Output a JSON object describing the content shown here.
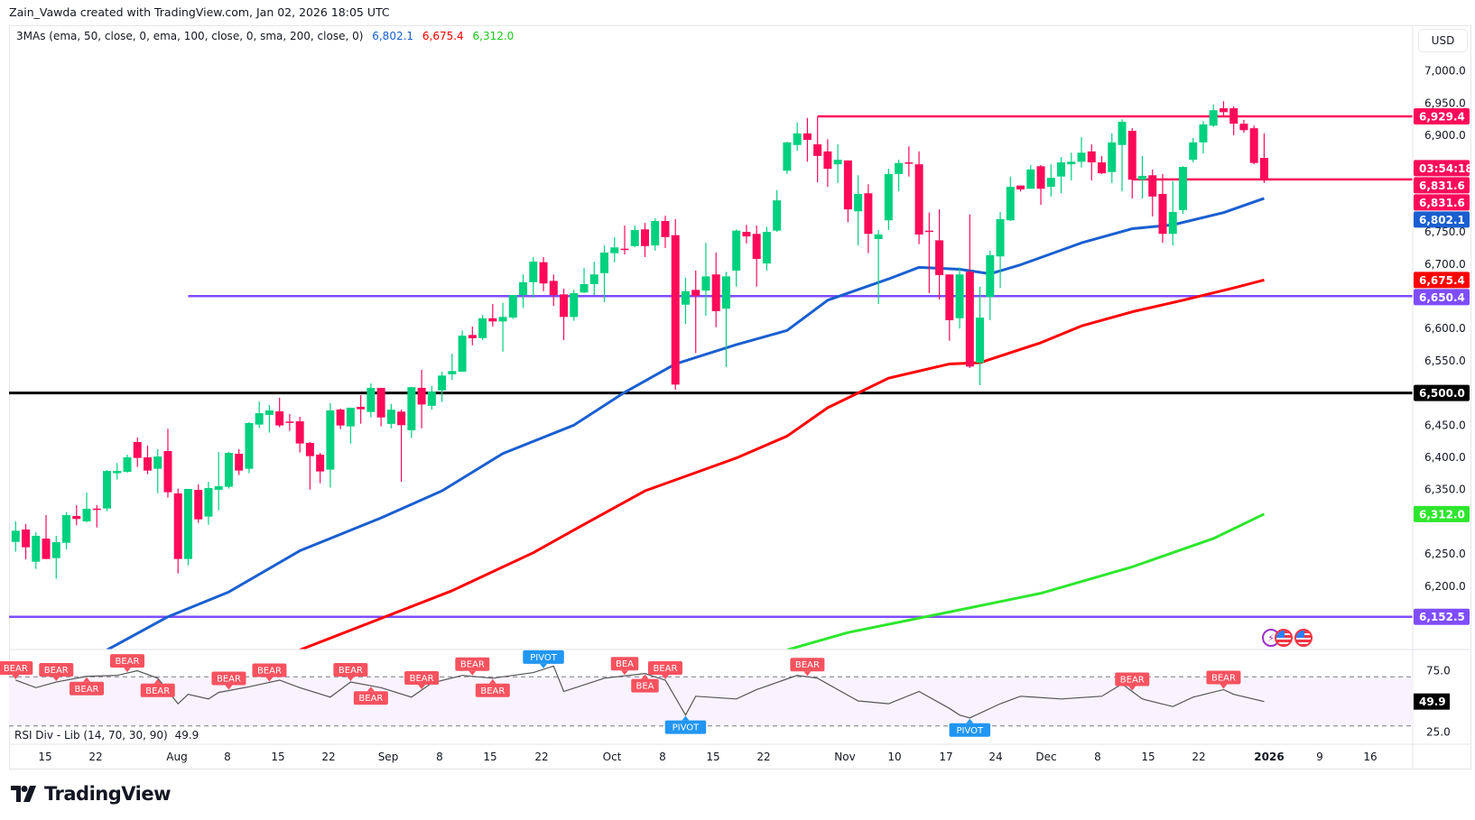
{
  "header": {
    "attribution": "Zain_Vawda created with TradingView.com, Jan 02, 2026 18:05 UTC"
  },
  "legend": {
    "name": "3MAs (ema, 50, close, 0, ema, 100, close, 0, sma, 200, close, 0)",
    "values": [
      "6,802.1",
      "6,675.4",
      "6,312.0"
    ]
  },
  "currency_button": "USD",
  "colors": {
    "up": "#00d17f",
    "down": "#ff0a5a",
    "ema50": "#1a5fd0",
    "ema100": "#ff0000",
    "sma200": "#2ee62e",
    "purple": "#7e4dff",
    "pink": "#ff0a5a",
    "black": "#000000",
    "pivot": "#2196f3",
    "bear": "#f7525f"
  },
  "chart_data": {
    "type": "candlestick",
    "ohlc": [
      [
        6268.8,
        6300.6,
        6253.4,
        6286.1
      ],
      [
        6288,
        6296.4,
        6241.7,
        6260.4
      ],
      [
        6238,
        6283.8,
        6226.8,
        6278.2
      ],
      [
        6273.9,
        6310.4,
        6242,
        6242.2
      ],
      [
        6243.6,
        6278.2,
        6211.4,
        6268.3
      ],
      [
        6267.4,
        6315,
        6257.1,
        6310.4
      ],
      [
        6309,
        6325.8,
        6294.5,
        6304.3
      ],
      [
        6300.6,
        6345.4,
        6299.2,
        6320.2
      ],
      [
        6320.5,
        6325.8,
        6291.2,
        6319.5
      ],
      [
        6320.6,
        6380.4,
        6316.4,
        6379
      ],
      [
        6375.3,
        6391.2,
        6365.5,
        6379
      ],
      [
        6377.6,
        6404.2,
        6376.2,
        6400
      ],
      [
        6423.8,
        6430.8,
        6385.1,
        6399.1
      ],
      [
        6400,
        6418.2,
        6373.9,
        6379.5
      ],
      [
        6382.3,
        6412.6,
        6344.4,
        6401.4
      ],
      [
        6409.8,
        6444.4,
        6337.5,
        6345.9
      ],
      [
        6344,
        6351.5,
        6219.8,
        6242.2
      ],
      [
        6242.2,
        6351,
        6232.4,
        6351
      ],
      [
        6349.6,
        6358,
        6298.2,
        6303.8
      ],
      [
        6308,
        6362.2,
        6295.4,
        6352.4
      ],
      [
        6349.6,
        6408.4,
        6317.8,
        6355.2
      ],
      [
        6354.3,
        6408.4,
        6351.5,
        6407
      ],
      [
        6405.6,
        6412.6,
        6372.5,
        6379.5
      ],
      [
        6382.3,
        6454.6,
        6375.3,
        6453.3
      ],
      [
        6450.9,
        6486.9,
        6445.3,
        6468.6
      ],
      [
        6465.9,
        6481.3,
        6438.3,
        6472.9
      ],
      [
        6471.5,
        6492.5,
        6446.7,
        6449.5
      ],
      [
        6455.6,
        6467.3,
        6441.1,
        6453.7
      ],
      [
        6456,
        6463,
        6407.5,
        6421.5
      ],
      [
        6422.4,
        6423.8,
        6350.1,
        6401.9
      ],
      [
        6404.2,
        6407,
        6359.9,
        6378.1
      ],
      [
        6380.9,
        6484.1,
        6352.9,
        6472.9
      ],
      [
        6474.3,
        6475.7,
        6443.9,
        6449.5
      ],
      [
        6448.1,
        6477.1,
        6421.5,
        6477.1
      ],
      [
        6478.5,
        6496.7,
        6452.3,
        6474.7
      ],
      [
        6470.5,
        6514.9,
        6462.1,
        6507.9
      ],
      [
        6507.8,
        6508,
        6448,
        6462
      ],
      [
        6452,
        6483,
        6445,
        6474
      ],
      [
        6471,
        6474,
        6362,
        6450
      ],
      [
        6442,
        6509,
        6430,
        6509
      ],
      [
        6508,
        6536,
        6445,
        6482
      ],
      [
        6480,
        6511,
        6474,
        6502
      ],
      [
        6504,
        6533,
        6486,
        6527
      ],
      [
        6529,
        6561,
        6520,
        6534
      ],
      [
        6533,
        6597,
        6533,
        6589
      ],
      [
        6590,
        6603,
        6574,
        6585
      ],
      [
        6585,
        6621,
        6582,
        6616
      ],
      [
        6616,
        6638,
        6603,
        6611
      ],
      [
        6611,
        6640,
        6564,
        6618
      ],
      [
        6617,
        6652,
        6615,
        6652
      ],
      [
        6652,
        6684,
        6632,
        6672
      ],
      [
        6672,
        6711,
        6648,
        6704
      ],
      [
        6703,
        6711,
        6658,
        6670
      ],
      [
        6674,
        6684,
        6635,
        6652
      ],
      [
        6653,
        6662,
        6582,
        6618
      ],
      [
        6618,
        6660,
        6612,
        6655
      ],
      [
        6656,
        6694,
        6655,
        6669
      ],
      [
        6669,
        6704,
        6652,
        6684
      ],
      [
        6686,
        6729,
        6641,
        6718
      ],
      [
        6717,
        6742,
        6703,
        6726
      ],
      [
        6724,
        6760,
        6715,
        6722
      ],
      [
        6728,
        6760,
        6726,
        6753
      ],
      [
        6754,
        6764,
        6711,
        6728
      ],
      [
        6729,
        6771,
        6721,
        6767
      ],
      [
        6767,
        6775,
        6725,
        6742
      ],
      [
        6745,
        6770,
        6505,
        6513
      ],
      [
        6637,
        6679,
        6607,
        6658
      ],
      [
        6660,
        6690,
        6562,
        6651
      ],
      [
        6659,
        6733,
        6620,
        6681
      ],
      [
        6684,
        6718,
        6602,
        6627
      ],
      [
        6631,
        6688,
        6540,
        6681
      ],
      [
        6690,
        6754,
        6665,
        6752
      ],
      [
        6750,
        6761,
        6732,
        6743
      ],
      [
        6747,
        6760,
        6665,
        6708
      ],
      [
        6701,
        6758,
        6690,
        6750
      ],
      [
        6752,
        6815,
        6750,
        6799
      ],
      [
        6845,
        6890,
        6840,
        6889
      ],
      [
        6885,
        6920,
        6876,
        6903
      ],
      [
        6903,
        6927,
        6859,
        6893
      ],
      [
        6886,
        6929,
        6827,
        6868
      ],
      [
        6875,
        6894,
        6820,
        6848
      ],
      [
        6855,
        6886,
        6826,
        6862
      ],
      [
        6861,
        6861,
        6765,
        6785
      ],
      [
        6782,
        6838,
        6729,
        6809
      ],
      [
        6810,
        6824,
        6717,
        6747
      ],
      [
        6739,
        6753,
        6638,
        6746
      ],
      [
        6768,
        6848,
        6753,
        6840
      ],
      [
        6840,
        6862,
        6813,
        6857
      ],
      [
        6858,
        6883,
        6836,
        6857
      ],
      [
        6855,
        6875,
        6731,
        6746
      ],
      [
        6752,
        6780,
        6655,
        6750
      ],
      [
        6737,
        6785,
        6645,
        6683
      ],
      [
        6684,
        6684,
        6581,
        6613
      ],
      [
        6616,
        6695,
        6600,
        6684
      ],
      [
        6688,
        6777,
        6539,
        6541
      ],
      [
        6547,
        6665,
        6512,
        6617
      ],
      [
        6649,
        6721,
        6613,
        6714
      ],
      [
        6712,
        6781,
        6663,
        6770
      ],
      [
        6768,
        6836,
        6767,
        6820
      ],
      [
        6822,
        6822,
        6813,
        6816
      ],
      [
        6817,
        6854,
        6817,
        6847
      ],
      [
        6852,
        6854,
        6792,
        6817
      ],
      [
        6820,
        6855,
        6805,
        6834
      ],
      [
        6836,
        6866,
        6810,
        6858
      ],
      [
        6855,
        6873,
        6830,
        6859
      ],
      [
        6859,
        6897,
        6850,
        6873
      ],
      [
        6875,
        6886,
        6830,
        6858
      ],
      [
        6858,
        6868,
        6840,
        6841
      ],
      [
        6843,
        6903,
        6826,
        6889
      ],
      [
        6885,
        6925,
        6813,
        6921
      ],
      [
        6907,
        6911,
        6802,
        6831
      ],
      [
        6831,
        6868,
        6802,
        6837
      ],
      [
        6838,
        6847,
        6774,
        6805
      ],
      [
        6809,
        6840,
        6733,
        6747
      ],
      [
        6747,
        6829,
        6729,
        6781
      ],
      [
        6784,
        6852,
        6778,
        6851
      ],
      [
        6862,
        6896,
        6858,
        6889
      ],
      [
        6889,
        6922,
        6872,
        6917
      ],
      [
        6915,
        6948,
        6913,
        6939
      ],
      [
        6942,
        6953,
        6931,
        6936
      ],
      [
        6942,
        6945,
        6900,
        6918
      ],
      [
        6918,
        6924,
        6904,
        6908
      ],
      [
        6911,
        6915,
        6855,
        6857
      ],
      [
        6865,
        6903,
        6826,
        6831.6
      ]
    ],
    "moving_averages": [
      {
        "name": "ema 50",
        "color_key": "ema50",
        "points": [
          [
            10,
            6101
          ],
          [
            16,
            6152.5
          ],
          [
            22,
            6191
          ],
          [
            29,
            6255
          ],
          [
            37,
            6306
          ],
          [
            43,
            6348
          ],
          [
            49,
            6406
          ],
          [
            56,
            6450
          ],
          [
            61,
            6501
          ],
          [
            66,
            6545
          ],
          [
            72,
            6575
          ],
          [
            77,
            6597
          ],
          [
            81,
            6644
          ],
          [
            87,
            6677
          ],
          [
            90,
            6695
          ],
          [
            94,
            6692
          ],
          [
            97,
            6685
          ],
          [
            100,
            6699
          ],
          [
            106,
            6733
          ],
          [
            111,
            6755
          ],
          [
            115,
            6761
          ],
          [
            120,
            6780
          ],
          [
            124,
            6802.1
          ]
        ]
      },
      {
        "name": "ema 100",
        "color_key": "ema100",
        "points": [
          [
            29,
            6101
          ],
          [
            37,
            6150
          ],
          [
            44,
            6193
          ],
          [
            52,
            6252
          ],
          [
            57,
            6296
          ],
          [
            63,
            6348
          ],
          [
            66,
            6365
          ],
          [
            72,
            6399
          ],
          [
            77,
            6433
          ],
          [
            81,
            6477
          ],
          [
            87,
            6523
          ],
          [
            93,
            6545
          ],
          [
            96,
            6547
          ],
          [
            102,
            6578
          ],
          [
            106,
            6604
          ],
          [
            111,
            6626
          ],
          [
            116,
            6644
          ],
          [
            121,
            6663
          ],
          [
            124,
            6675.4
          ]
        ]
      },
      {
        "name": "sma 200",
        "color_key": "sma200",
        "points": [
          [
            77,
            6101
          ],
          [
            83,
            6128
          ],
          [
            93,
            6160
          ],
          [
            102,
            6189
          ],
          [
            111,
            6230
          ],
          [
            119,
            6274
          ],
          [
            124,
            6312
          ]
        ]
      }
    ],
    "horizontal_levels": [
      {
        "price": 6929.4,
        "label": "6,929.4",
        "color_key": "pink",
        "from_bar": 80
      },
      {
        "price": 6831.6,
        "label": "6,831.6",
        "color_key": "pink",
        "from_bar": 111
      },
      {
        "price": 6650.4,
        "label": "6,650.4",
        "color_key": "purple",
        "from_bar": 18
      },
      {
        "price": 6500.0,
        "label": "6,500.0",
        "color_key": "black",
        "from_bar": 0
      },
      {
        "price": 6152.5,
        "label": "6,152.5",
        "color_key": "purple",
        "from_bar": 0
      }
    ],
    "price_axis": {
      "ticks": [
        "7,000.0",
        "6,950.0",
        "6,900.0",
        "6,750.0",
        "6,700.0",
        "6,600.0",
        "6,550.0",
        "6,450.0",
        "6,400.0",
        "6,350.0",
        "6,250.0",
        "6,200.0"
      ]
    },
    "price_tags": [
      {
        "text": "03:54:18",
        "price": 6849,
        "color_key": "pink"
      },
      {
        "text": "6,831.6",
        "price": 6831.6,
        "color_key": "pink"
      },
      {
        "text": "6,802.1",
        "price": 6802.1,
        "color_key": "ema50"
      },
      {
        "text": "6,675.4",
        "price": 6675.4,
        "color_key": "ema100"
      },
      {
        "text": "6,312.0",
        "price": 6312.0,
        "color_key": "sma200"
      }
    ],
    "time_axis": [
      {
        "t": "15"
      },
      {
        "t": "22"
      },
      {
        "t": "Aug",
        "b": true
      },
      {
        "t": "8"
      },
      {
        "t": "15"
      },
      {
        "t": "22"
      },
      {
        "t": "Sep",
        "b": true
      },
      {
        "t": "8"
      },
      {
        "t": "15"
      },
      {
        "t": "22"
      },
      {
        "t": "Oct",
        "b": true
      },
      {
        "t": "8"
      },
      {
        "t": "15"
      },
      {
        "t": "22"
      },
      {
        "t": "Nov",
        "b": true
      },
      {
        "t": "10"
      },
      {
        "t": "17"
      },
      {
        "t": "24"
      },
      {
        "t": "Dec",
        "b": true
      },
      {
        "t": "8"
      },
      {
        "t": "15"
      },
      {
        "t": "22"
      },
      {
        "t": "2026",
        "b": true
      },
      {
        "t": "9"
      },
      {
        "t": "16"
      }
    ]
  },
  "rsi": {
    "legend": "RSI Div - Lib (14, 70, 30, 90)",
    "value": "49.9",
    "axis_ticks": [
      "75.0",
      "25.0"
    ],
    "overbought": 70,
    "oversold": 30,
    "points": [
      [
        1,
        67.3
      ],
      [
        3,
        61.2
      ],
      [
        5,
        65.8
      ],
      [
        8,
        70.4
      ],
      [
        11,
        71.2
      ],
      [
        13,
        75
      ],
      [
        15,
        68.9
      ],
      [
        17,
        48.1
      ],
      [
        18,
        55.8
      ],
      [
        20,
        52
      ],
      [
        21,
        57.3
      ],
      [
        24,
        61.9
      ],
      [
        27,
        67.3
      ],
      [
        29,
        61.2
      ],
      [
        32,
        53.5
      ],
      [
        34,
        65.8
      ],
      [
        37,
        61.2
      ],
      [
        40,
        53.5
      ],
      [
        42,
        65
      ],
      [
        45,
        71.2
      ],
      [
        48,
        68.9
      ],
      [
        52,
        73.5
      ],
      [
        54,
        78.8
      ],
      [
        55,
        58.1
      ],
      [
        59,
        68.9
      ],
      [
        63,
        72.7
      ],
      [
        65,
        67.3
      ],
      [
        67,
        38.9
      ],
      [
        68,
        54.2
      ],
      [
        72,
        52
      ],
      [
        74,
        59.6
      ],
      [
        78,
        71.2
      ],
      [
        80,
        68.9
      ],
      [
        82,
        59.6
      ],
      [
        84,
        50.4
      ],
      [
        87,
        48.1
      ],
      [
        90,
        58.1
      ],
      [
        93,
        44.3
      ],
      [
        94,
        38.9
      ],
      [
        95,
        36.6
      ],
      [
        98,
        48.1
      ],
      [
        100,
        54.2
      ],
      [
        104,
        52
      ],
      [
        108,
        54.2
      ],
      [
        110,
        64.2
      ],
      [
        112,
        52
      ],
      [
        115,
        45.8
      ],
      [
        117,
        53.5
      ],
      [
        120,
        59.6
      ],
      [
        121,
        55.8
      ],
      [
        124,
        49.9
      ]
    ],
    "signals": [
      {
        "bar": 1,
        "text": "BEAR"
      },
      {
        "bar": 5,
        "text": "BEAR"
      },
      {
        "bar": 8,
        "text": "BEAR"
      },
      {
        "bar": 12,
        "text": "BEAR"
      },
      {
        "bar": 15,
        "text": "BEAR"
      },
      {
        "bar": 22,
        "text": "BEAR"
      },
      {
        "bar": 26,
        "text": "BEAR"
      },
      {
        "bar": 34,
        "text": "BEAR"
      },
      {
        "bar": 36,
        "text": "BEAR"
      },
      {
        "bar": 41,
        "text": "BEAR"
      },
      {
        "bar": 46,
        "text": "BEAR"
      },
      {
        "bar": 48,
        "text": "BEAR"
      },
      {
        "bar": 53,
        "text": "PIVOT",
        "below": false,
        "pivot": true
      },
      {
        "bar": 61,
        "text": "BEA"
      },
      {
        "bar": 63,
        "text": "BEA"
      },
      {
        "bar": 65,
        "text": "BEAR"
      },
      {
        "bar": 67,
        "text": "PIVOT",
        "below": true,
        "pivot": true
      },
      {
        "bar": 79,
        "text": "BEAR"
      },
      {
        "bar": 95,
        "text": "PIVOT",
        "below": true,
        "pivot": true
      },
      {
        "bar": 111,
        "text": "BEAR"
      },
      {
        "bar": 120,
        "text": "BEAR"
      }
    ]
  },
  "footer": {
    "logo_text": "TradingView"
  }
}
